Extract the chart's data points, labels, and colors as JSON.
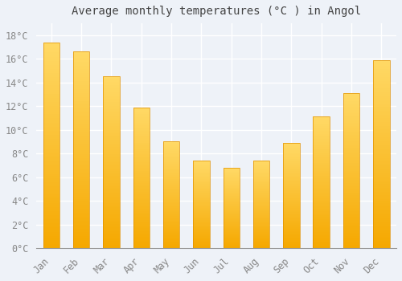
{
  "title": "Average monthly temperatures (°C ) in Angol",
  "months": [
    "Jan",
    "Feb",
    "Mar",
    "Apr",
    "May",
    "Jun",
    "Jul",
    "Aug",
    "Sep",
    "Oct",
    "Nov",
    "Dec"
  ],
  "values": [
    17.4,
    16.6,
    14.5,
    11.9,
    9.0,
    7.4,
    6.8,
    7.4,
    8.9,
    11.1,
    13.1,
    15.9
  ],
  "bar_color_bottom": "#F5A800",
  "bar_color_top": "#FFD966",
  "bar_edge_color": "#E09000",
  "background_color": "#EEF2F8",
  "plot_bg_color": "#EEF2F8",
  "grid_color": "#FFFFFF",
  "tick_label_color": "#888888",
  "title_color": "#444444",
  "ylim": [
    0,
    19
  ],
  "yticks": [
    0,
    2,
    4,
    6,
    8,
    10,
    12,
    14,
    16,
    18
  ],
  "title_fontsize": 10,
  "tick_fontsize": 8.5,
  "bar_width": 0.55
}
